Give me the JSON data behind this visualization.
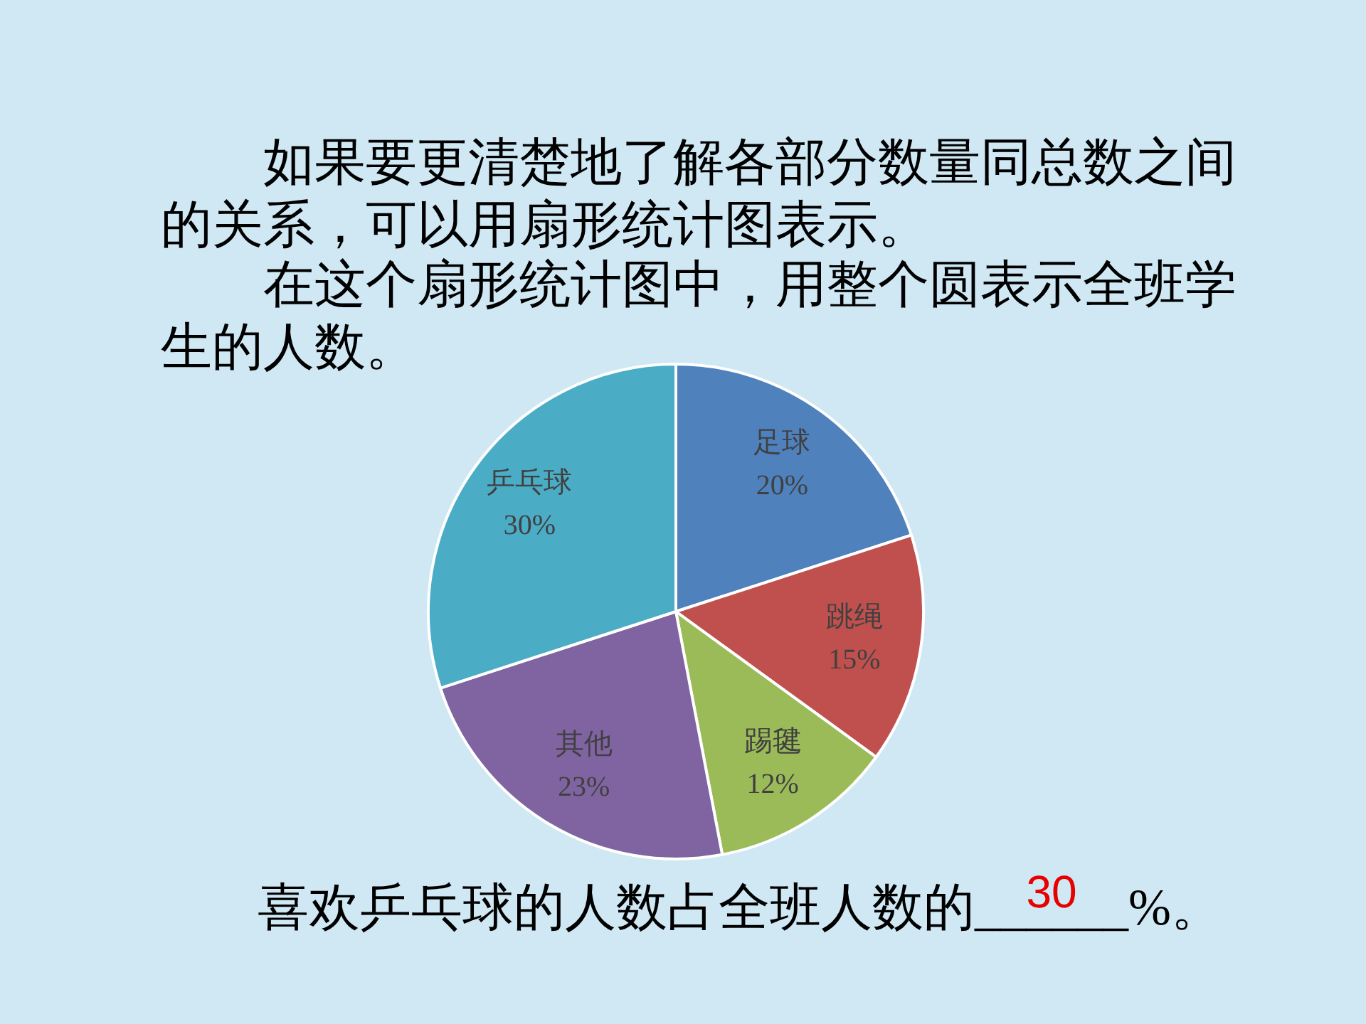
{
  "chart_data": {
    "type": "pie",
    "title": "如果要更清楚地了解各部分数量同总数之间的关系，可以用扇形统计图表示。",
    "subtitle": "在这个扇形统计图中，用整个圆表示全班学生的人数。",
    "categories": [
      "足球",
      "跳绳",
      "踢毽",
      "其他",
      "乒乓球"
    ],
    "values": [
      20,
      15,
      12,
      23,
      30
    ],
    "colors": [
      "#4f81bd",
      "#c0504d",
      "#9bbb59",
      "#8064a2",
      "#4bacc6"
    ],
    "value_labels": [
      "20%",
      "15%",
      "12%",
      "23%",
      "30%"
    ],
    "annotations": [
      "喜欢乒乓球的人数占全班人数的______%。",
      "30"
    ]
  }
}
